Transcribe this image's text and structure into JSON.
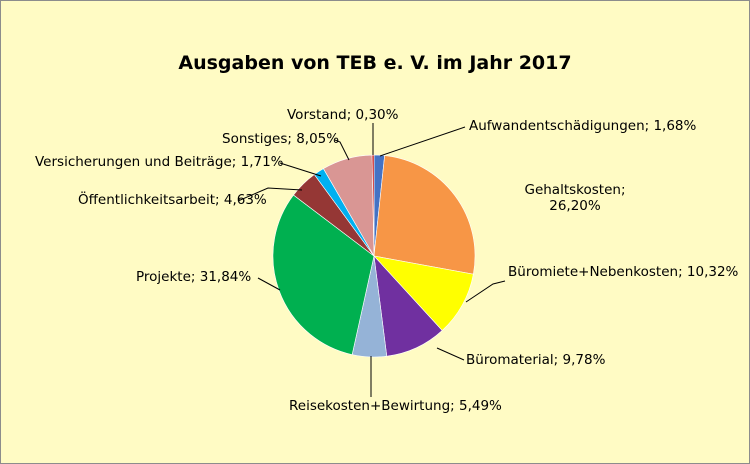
{
  "chart_data": {
    "type": "pie",
    "title": "Ausgaben von TEB e. V. im Jahr 2017",
    "slices": [
      {
        "name": "Aufwandentschädigungen",
        "value": 1.68,
        "label": "Aufwandentschädigungen; 1,68%",
        "color": "#4472c4"
      },
      {
        "name": "Gehaltskosten",
        "value": 26.2,
        "label": "Gehaltskosten;",
        "label2": "26,20%",
        "color": "#f79646"
      },
      {
        "name": "Büromiete+Nebenkosten",
        "value": 10.32,
        "label": "Büromiete+Nebenkosten; 10,32%",
        "color": "#ffff00"
      },
      {
        "name": "Büromaterial",
        "value": 9.78,
        "label": "Büromaterial; 9,78%",
        "color": "#7030a0"
      },
      {
        "name": "Reisekosten+Bewirtung",
        "value": 5.49,
        "label": "Reisekosten+Bewirtung; 5,49%",
        "color": "#95b3d7"
      },
      {
        "name": "Projekte",
        "value": 31.84,
        "label": "Projekte; 31,84%",
        "color": "#00b050"
      },
      {
        "name": "Öffentlichkeitsarbeit",
        "value": 4.63,
        "label": "Öffentlichkeitsarbeit; 4,63%",
        "color": "#953735"
      },
      {
        "name": "Versicherungen und Beiträge",
        "value": 1.71,
        "label": "Versicherungen und Beiträge; 1,71%",
        "color": "#00b0f0"
      },
      {
        "name": "Sonstiges",
        "value": 8.05,
        "label": "Sonstiges; 8,05%",
        "color": "#d99694"
      },
      {
        "name": "Vorstand",
        "value": 0.3,
        "label": "Vorstand; 0,30%",
        "color": "#c00000"
      }
    ],
    "start": "12 o'clock",
    "direction": "clockwise",
    "legend": "none",
    "background": "#fffbc4"
  }
}
